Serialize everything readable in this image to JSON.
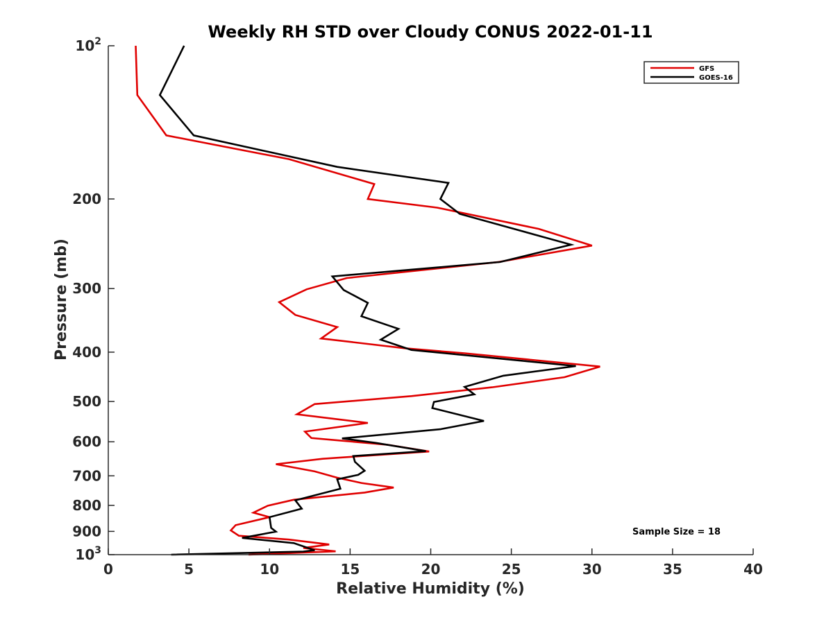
{
  "chart_data": {
    "type": "line",
    "title": "Weekly RH STD over Cloudy CONUS 2022-01-11",
    "xlabel": "Relative Humidity (%)",
    "ylabel": "Pressure (mb)",
    "xlim": [
      0,
      40
    ],
    "ylim": [
      100,
      1000
    ],
    "y_scale": "log",
    "y_reversed": true,
    "x_ticks": [
      "0",
      "5",
      "10",
      "15",
      "20",
      "25",
      "30",
      "35",
      "40"
    ],
    "y_ticks": [
      {
        "value": 100,
        "label": "10",
        "sup": "2"
      },
      {
        "value": 200,
        "label": "200",
        "sup": ""
      },
      {
        "value": 300,
        "label": "300",
        "sup": ""
      },
      {
        "value": 400,
        "label": "400",
        "sup": ""
      },
      {
        "value": 500,
        "label": "500",
        "sup": ""
      },
      {
        "value": 600,
        "label": "600",
        "sup": ""
      },
      {
        "value": 700,
        "label": "700",
        "sup": ""
      },
      {
        "value": 800,
        "label": "800",
        "sup": ""
      },
      {
        "value": 900,
        "label": "900",
        "sup": ""
      },
      {
        "value": 1000,
        "label": "10",
        "sup": "3"
      }
    ],
    "grid": false,
    "legend_position": "top-right",
    "annotation": "Sample Size = 18",
    "series": [
      {
        "name": "GFS",
        "color": "#e00000",
        "points": [
          [
            1.7,
            100
          ],
          [
            1.8,
            125
          ],
          [
            3.6,
            150
          ],
          [
            11.2,
            167
          ],
          [
            16.5,
            187
          ],
          [
            16.1,
            200
          ],
          [
            20.4,
            208
          ],
          [
            26.7,
            229
          ],
          [
            30.0,
            247
          ],
          [
            24.2,
            266
          ],
          [
            14.8,
            286
          ],
          [
            12.3,
            301
          ],
          [
            10.6,
            319
          ],
          [
            11.6,
            338
          ],
          [
            14.2,
            357
          ],
          [
            13.2,
            376
          ],
          [
            18.4,
            393
          ],
          [
            22.1,
            402
          ],
          [
            30.5,
            427
          ],
          [
            28.3,
            448
          ],
          [
            23.8,
            469
          ],
          [
            18.8,
            488
          ],
          [
            12.8,
            506
          ],
          [
            11.7,
            530
          ],
          [
            16.1,
            551
          ],
          [
            12.2,
            573
          ],
          [
            12.6,
            590
          ],
          [
            17.3,
            608
          ],
          [
            19.9,
            627
          ],
          [
            13.3,
            648
          ],
          [
            10.4,
            664
          ],
          [
            12.8,
            686
          ],
          [
            14.2,
            706
          ],
          [
            15.7,
            723
          ],
          [
            17.7,
            738
          ],
          [
            15.9,
            755
          ],
          [
            11.5,
            780
          ],
          [
            9.9,
            801
          ],
          [
            9.0,
            827
          ],
          [
            10.0,
            844
          ],
          [
            7.9,
            875
          ],
          [
            7.6,
            896
          ],
          [
            8.1,
            918
          ],
          [
            11.2,
            934
          ],
          [
            13.7,
            955
          ],
          [
            12.1,
            970
          ],
          [
            14.1,
            985
          ],
          [
            8.7,
            1000
          ]
        ]
      },
      {
        "name": "GOES-16",
        "color": "#000000",
        "points": [
          [
            4.7,
            100
          ],
          [
            3.2,
            125
          ],
          [
            5.3,
            150
          ],
          [
            14.2,
            173
          ],
          [
            21.1,
            186
          ],
          [
            20.6,
            200
          ],
          [
            21.8,
            214
          ],
          [
            28.7,
            246
          ],
          [
            24.3,
            266
          ],
          [
            13.9,
            284
          ],
          [
            14.6,
            302
          ],
          [
            16.1,
            320
          ],
          [
            15.7,
            340
          ],
          [
            18.0,
            360
          ],
          [
            16.9,
            378
          ],
          [
            18.8,
            396
          ],
          [
            29.0,
            426
          ],
          [
            24.5,
            445
          ],
          [
            22.1,
            468
          ],
          [
            22.7,
            484
          ],
          [
            20.2,
            501
          ],
          [
            20.1,
            515
          ],
          [
            23.3,
            546
          ],
          [
            20.6,
            567
          ],
          [
            14.5,
            591
          ],
          [
            16.6,
            603
          ],
          [
            19.7,
            626
          ],
          [
            15.2,
            640
          ],
          [
            15.3,
            657
          ],
          [
            15.9,
            684
          ],
          [
            15.5,
            697
          ],
          [
            14.2,
            711
          ],
          [
            14.4,
            742
          ],
          [
            11.6,
            782
          ],
          [
            12.0,
            812
          ],
          [
            10.0,
            844
          ],
          [
            10.1,
            886
          ],
          [
            10.4,
            901
          ],
          [
            8.3,
            927
          ],
          [
            11.5,
            949
          ],
          [
            12.8,
            980
          ],
          [
            12.1,
            986
          ],
          [
            3.9,
            1000
          ]
        ]
      }
    ]
  }
}
